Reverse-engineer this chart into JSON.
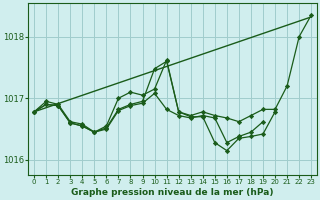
{
  "title": "Graphe pression niveau de la mer (hPa)",
  "bg_color": "#d0eeee",
  "grid_color": "#a0cccc",
  "line_color": "#1a5c1a",
  "figsize": [
    3.2,
    2.0
  ],
  "dpi": 100,
  "xlim": [
    -0.5,
    23.5
  ],
  "ylim": [
    1015.75,
    1018.55
  ],
  "yticks": [
    1016,
    1017,
    1018
  ],
  "xticks": [
    0,
    1,
    2,
    3,
    4,
    5,
    6,
    7,
    8,
    9,
    10,
    11,
    12,
    13,
    14,
    15,
    16,
    17,
    18,
    19,
    20,
    21,
    22,
    23
  ],
  "series": [
    {
      "has_markers": false,
      "x": [
        0,
        23
      ],
      "y": [
        1016.78,
        1018.32
      ]
    },
    {
      "has_markers": true,
      "x": [
        0,
        1,
        2,
        3,
        4,
        5,
        6,
        7,
        8,
        9,
        10,
        11,
        12,
        13,
        14,
        15,
        16,
        17,
        18,
        19,
        20,
        21,
        22,
        23
      ],
      "y": [
        1016.78,
        1016.95,
        1016.9,
        1016.62,
        1016.58,
        1016.45,
        1016.55,
        1017.0,
        1017.1,
        1017.05,
        1017.15,
        1017.62,
        1016.78,
        1016.72,
        1016.78,
        1016.72,
        1016.68,
        1016.62,
        1016.72,
        1016.82,
        1016.82,
        1017.2,
        1018.0,
        1018.35
      ]
    },
    {
      "has_markers": true,
      "x": [
        0,
        1,
        2,
        3,
        4,
        5,
        6,
        7,
        8,
        9,
        10,
        11,
        12,
        13,
        14,
        15,
        16,
        17,
        18,
        19,
        20
      ],
      "y": [
        1016.78,
        1016.9,
        1016.88,
        1016.6,
        1016.55,
        1016.45,
        1016.52,
        1016.82,
        1016.9,
        1016.95,
        1017.48,
        1017.6,
        1016.78,
        1016.7,
        1016.7,
        1016.28,
        1016.15,
        1016.35,
        1016.38,
        1016.42,
        1016.78
      ]
    },
    {
      "has_markers": true,
      "x": [
        0,
        1,
        2,
        3,
        4,
        5,
        6,
        7,
        8,
        9,
        10,
        11,
        12,
        13,
        14,
        15,
        16,
        17,
        18,
        19
      ],
      "y": [
        1016.78,
        1016.9,
        1016.88,
        1016.6,
        1016.55,
        1016.45,
        1016.5,
        1016.8,
        1016.88,
        1016.92,
        1017.08,
        1016.82,
        1016.72,
        1016.68,
        1016.72,
        1016.68,
        1016.28,
        1016.38,
        1016.45,
        1016.62
      ]
    }
  ]
}
